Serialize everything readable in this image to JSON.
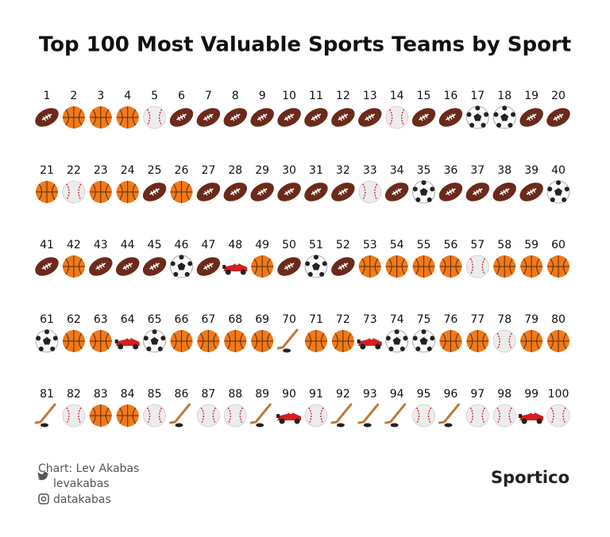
{
  "header": {
    "title": "Top 100 Most Valuable Sports Teams by Sport"
  },
  "teams": [
    {
      "rank": 1,
      "sport": "football"
    },
    {
      "rank": 2,
      "sport": "basketball"
    },
    {
      "rank": 3,
      "sport": "basketball"
    },
    {
      "rank": 4,
      "sport": "basketball"
    },
    {
      "rank": 5,
      "sport": "baseball"
    },
    {
      "rank": 6,
      "sport": "football"
    },
    {
      "rank": 7,
      "sport": "football"
    },
    {
      "rank": 8,
      "sport": "football"
    },
    {
      "rank": 9,
      "sport": "football"
    },
    {
      "rank": 10,
      "sport": "football"
    },
    {
      "rank": 11,
      "sport": "football"
    },
    {
      "rank": 12,
      "sport": "football"
    },
    {
      "rank": 13,
      "sport": "football"
    },
    {
      "rank": 14,
      "sport": "baseball"
    },
    {
      "rank": 15,
      "sport": "football"
    },
    {
      "rank": 16,
      "sport": "football"
    },
    {
      "rank": 17,
      "sport": "soccer"
    },
    {
      "rank": 18,
      "sport": "soccer"
    },
    {
      "rank": 19,
      "sport": "football"
    },
    {
      "rank": 20,
      "sport": "football"
    },
    {
      "rank": 21,
      "sport": "basketball"
    },
    {
      "rank": 22,
      "sport": "baseball"
    },
    {
      "rank": 23,
      "sport": "basketball"
    },
    {
      "rank": 24,
      "sport": "basketball"
    },
    {
      "rank": 25,
      "sport": "football"
    },
    {
      "rank": 26,
      "sport": "basketball"
    },
    {
      "rank": 27,
      "sport": "football"
    },
    {
      "rank": 28,
      "sport": "football"
    },
    {
      "rank": 29,
      "sport": "football"
    },
    {
      "rank": 30,
      "sport": "football"
    },
    {
      "rank": 31,
      "sport": "football"
    },
    {
      "rank": 32,
      "sport": "football"
    },
    {
      "rank": 33,
      "sport": "baseball"
    },
    {
      "rank": 34,
      "sport": "football"
    },
    {
      "rank": 35,
      "sport": "soccer"
    },
    {
      "rank": 36,
      "sport": "football"
    },
    {
      "rank": 37,
      "sport": "football"
    },
    {
      "rank": 38,
      "sport": "football"
    },
    {
      "rank": 39,
      "sport": "football"
    },
    {
      "rank": 40,
      "sport": "soccer"
    },
    {
      "rank": 41,
      "sport": "football"
    },
    {
      "rank": 42,
      "sport": "basketball"
    },
    {
      "rank": 43,
      "sport": "football"
    },
    {
      "rank": 44,
      "sport": "football"
    },
    {
      "rank": 45,
      "sport": "football"
    },
    {
      "rank": 46,
      "sport": "soccer"
    },
    {
      "rank": 47,
      "sport": "football"
    },
    {
      "rank": 48,
      "sport": "racing"
    },
    {
      "rank": 49,
      "sport": "basketball"
    },
    {
      "rank": 50,
      "sport": "football"
    },
    {
      "rank": 51,
      "sport": "soccer"
    },
    {
      "rank": 52,
      "sport": "football"
    },
    {
      "rank": 53,
      "sport": "basketball"
    },
    {
      "rank": 54,
      "sport": "basketball"
    },
    {
      "rank": 55,
      "sport": "basketball"
    },
    {
      "rank": 56,
      "sport": "basketball"
    },
    {
      "rank": 57,
      "sport": "baseball"
    },
    {
      "rank": 58,
      "sport": "basketball"
    },
    {
      "rank": 59,
      "sport": "basketball"
    },
    {
      "rank": 60,
      "sport": "basketball"
    },
    {
      "rank": 61,
      "sport": "soccer"
    },
    {
      "rank": 62,
      "sport": "basketball"
    },
    {
      "rank": 63,
      "sport": "basketball"
    },
    {
      "rank": 64,
      "sport": "racing"
    },
    {
      "rank": 65,
      "sport": "soccer"
    },
    {
      "rank": 66,
      "sport": "basketball"
    },
    {
      "rank": 67,
      "sport": "basketball"
    },
    {
      "rank": 68,
      "sport": "basketball"
    },
    {
      "rank": 69,
      "sport": "basketball"
    },
    {
      "rank": 70,
      "sport": "hockey"
    },
    {
      "rank": 71,
      "sport": "basketball"
    },
    {
      "rank": 72,
      "sport": "basketball"
    },
    {
      "rank": 73,
      "sport": "racing"
    },
    {
      "rank": 74,
      "sport": "soccer"
    },
    {
      "rank": 75,
      "sport": "soccer"
    },
    {
      "rank": 76,
      "sport": "basketball"
    },
    {
      "rank": 77,
      "sport": "basketball"
    },
    {
      "rank": 78,
      "sport": "baseball"
    },
    {
      "rank": 79,
      "sport": "basketball"
    },
    {
      "rank": 80,
      "sport": "basketball"
    },
    {
      "rank": 81,
      "sport": "hockey"
    },
    {
      "rank": 82,
      "sport": "baseball"
    },
    {
      "rank": 83,
      "sport": "basketball"
    },
    {
      "rank": 84,
      "sport": "basketball"
    },
    {
      "rank": 85,
      "sport": "baseball"
    },
    {
      "rank": 86,
      "sport": "hockey"
    },
    {
      "rank": 87,
      "sport": "baseball"
    },
    {
      "rank": 88,
      "sport": "baseball"
    },
    {
      "rank": 89,
      "sport": "hockey"
    },
    {
      "rank": 90,
      "sport": "racing"
    },
    {
      "rank": 91,
      "sport": "baseball"
    },
    {
      "rank": 92,
      "sport": "hockey"
    },
    {
      "rank": 93,
      "sport": "hockey"
    },
    {
      "rank": 94,
      "sport": "hockey"
    },
    {
      "rank": 95,
      "sport": "baseball"
    },
    {
      "rank": 96,
      "sport": "hockey"
    },
    {
      "rank": 97,
      "sport": "baseball"
    },
    {
      "rank": 98,
      "sport": "baseball"
    },
    {
      "rank": 99,
      "sport": "racing"
    },
    {
      "rank": 100,
      "sport": "baseball"
    }
  ],
  "footer": {
    "credit": "Chart: Lev Akabas",
    "twitter": "levakabas",
    "instagram": "datakabas",
    "brand": "Sportico"
  }
}
